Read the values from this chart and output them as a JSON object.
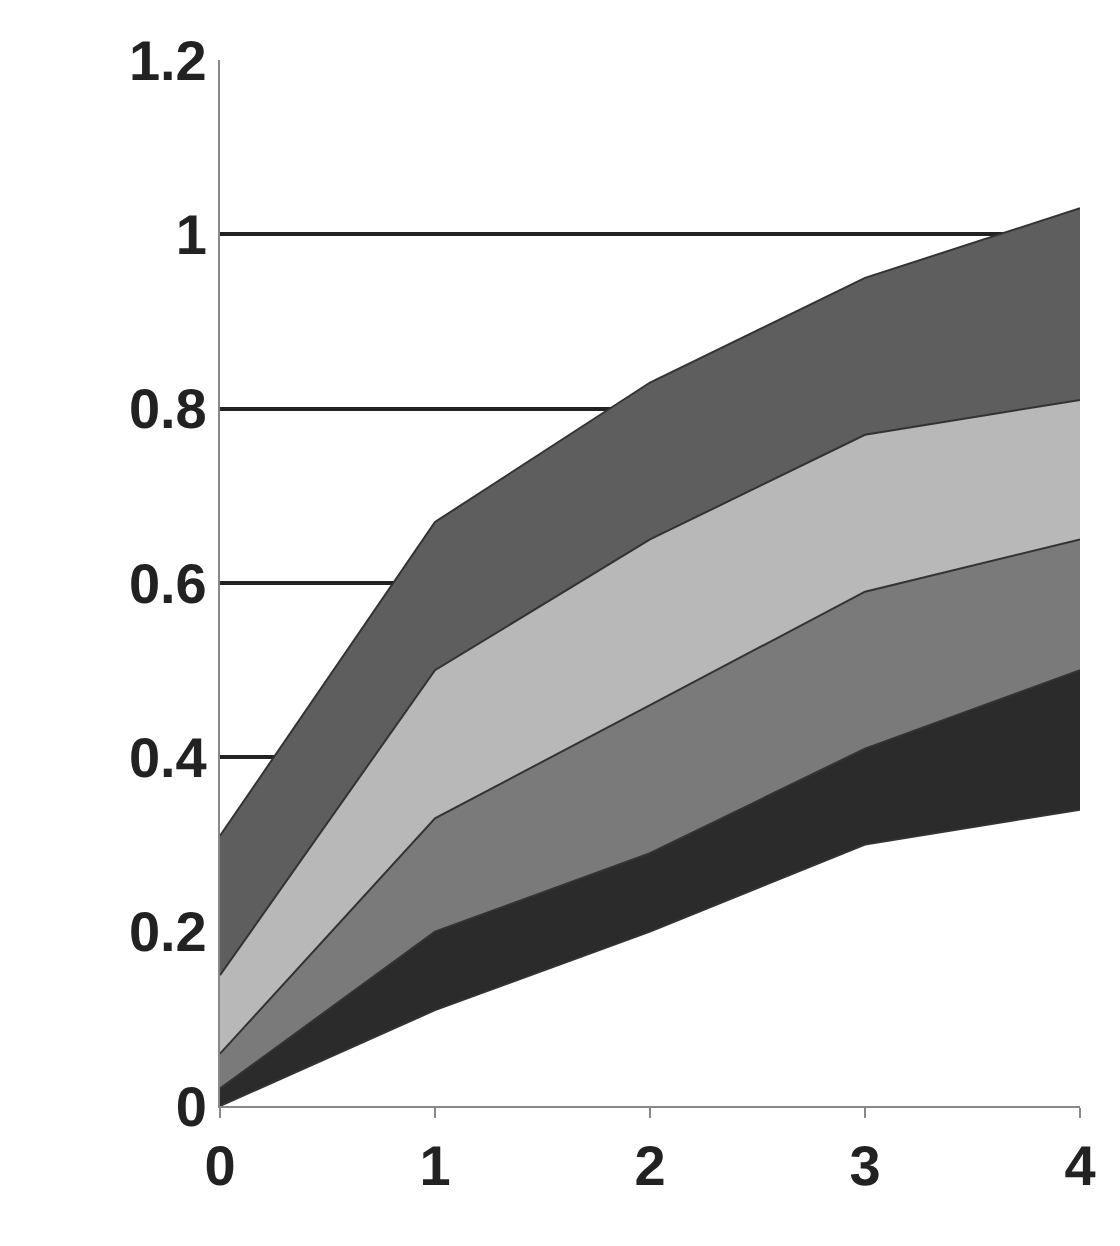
{
  "chart_data": {
    "type": "area",
    "stacked": true,
    "x": [
      0,
      1,
      2,
      3,
      4
    ],
    "series": [
      {
        "color": "#ffffff",
        "values": [
          0,
          0.11,
          0.2,
          0.3,
          0.34
        ]
      },
      {
        "color": "#2b2b2b",
        "values": [
          0.02,
          0.09,
          0.09,
          0.11,
          0.16
        ]
      },
      {
        "color": "#7a7a7a",
        "values": [
          0.04,
          0.13,
          0.17,
          0.18,
          0.15
        ]
      },
      {
        "color": "#b8b8b8",
        "values": [
          0.09,
          0.17,
          0.19,
          0.18,
          0.16
        ]
      },
      {
        "color": "#5e5e5e",
        "values": [
          0.16,
          0.17,
          0.18,
          0.18,
          0.22
        ]
      }
    ],
    "xlim": [
      0,
      4
    ],
    "xticks": [
      0,
      1,
      2,
      3,
      4
    ],
    "ylim": [
      0,
      1.2
    ],
    "yticks": [
      0,
      0.2,
      0.4,
      0.6,
      0.8,
      1,
      1.2
    ],
    "grid": "y"
  }
}
